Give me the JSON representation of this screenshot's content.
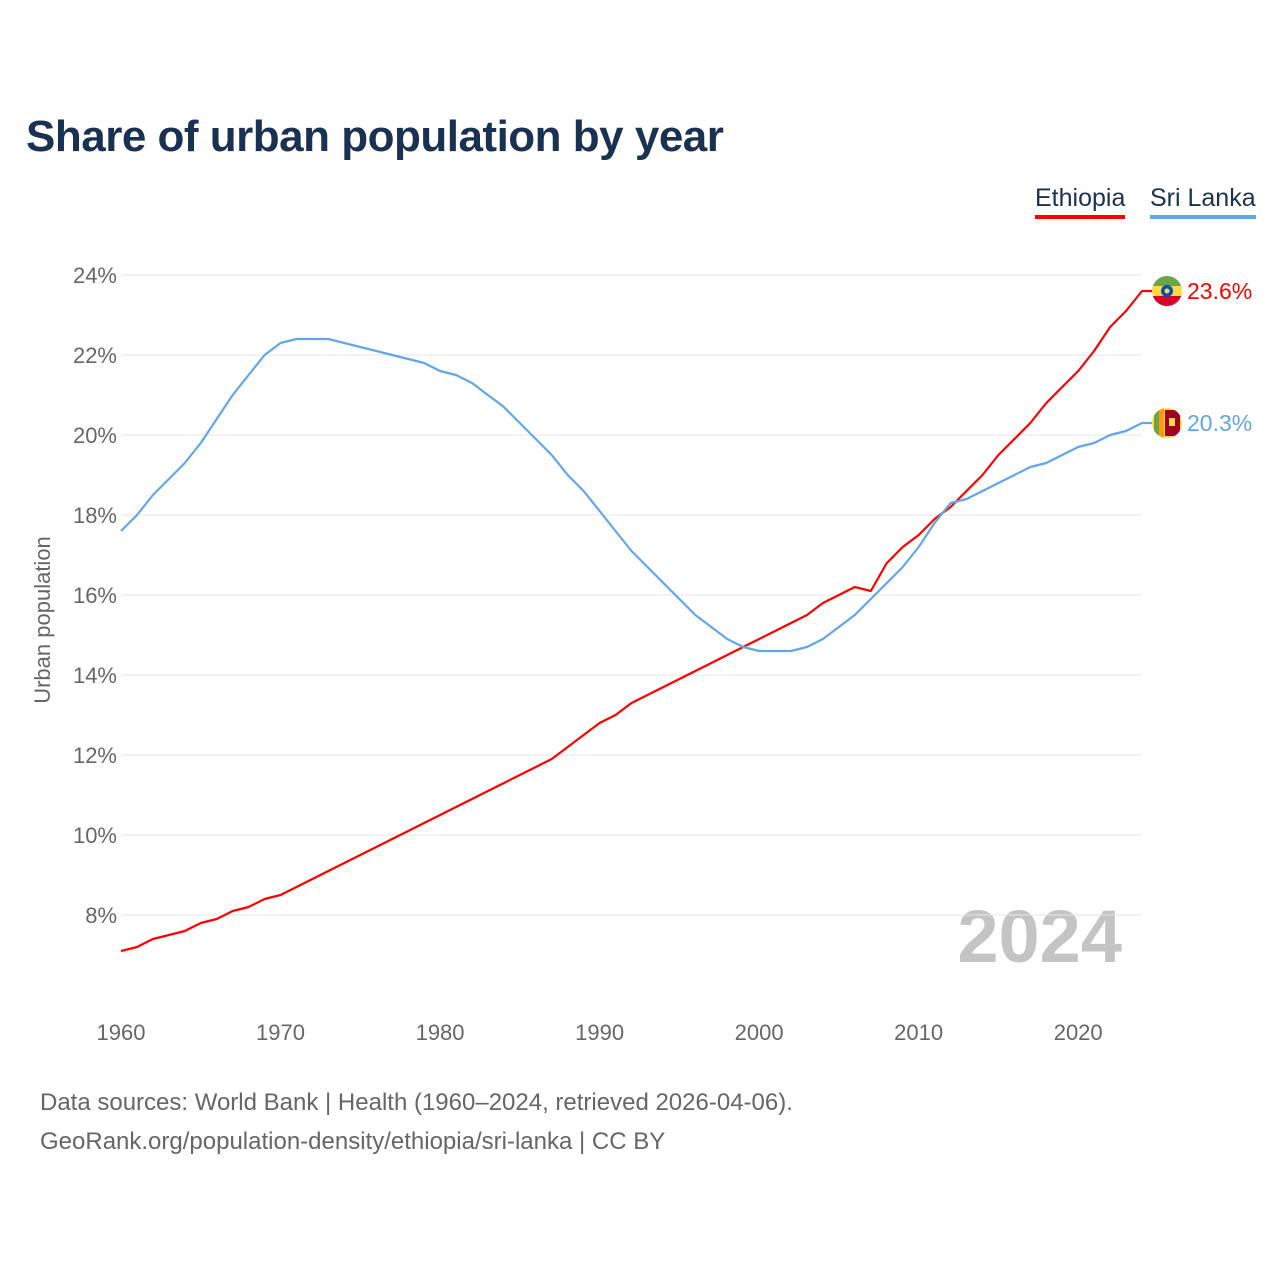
{
  "chart_data": {
    "type": "line",
    "title": "Share of urban population by year",
    "ylabel": "Urban population",
    "xlabel": "",
    "xlim": [
      1960,
      2024
    ],
    "ylim": [
      6,
      24
    ],
    "y_ticks": [
      8,
      10,
      12,
      14,
      16,
      18,
      20,
      22,
      24
    ],
    "y_tick_labels": [
      "8%",
      "10%",
      "12%",
      "14%",
      "16%",
      "18%",
      "20%",
      "22%",
      "24%"
    ],
    "x_ticks": [
      1960,
      1970,
      1980,
      1990,
      2000,
      2010,
      2020
    ],
    "x_tick_labels": [
      "1960",
      "1970",
      "1980",
      "1990",
      "2000",
      "2010",
      "2020"
    ],
    "grid": true,
    "legend_position": "top-right",
    "year_watermark": "2024",
    "x": [
      1960,
      1961,
      1962,
      1963,
      1964,
      1965,
      1966,
      1967,
      1968,
      1969,
      1970,
      1971,
      1972,
      1973,
      1974,
      1975,
      1976,
      1977,
      1978,
      1979,
      1980,
      1981,
      1982,
      1983,
      1984,
      1985,
      1986,
      1987,
      1988,
      1989,
      1990,
      1991,
      1992,
      1993,
      1994,
      1995,
      1996,
      1997,
      1998,
      1999,
      2000,
      2001,
      2002,
      2003,
      2004,
      2005,
      2006,
      2007,
      2008,
      2009,
      2010,
      2011,
      2012,
      2013,
      2014,
      2015,
      2016,
      2017,
      2018,
      2019,
      2020,
      2021,
      2022,
      2023,
      2024
    ],
    "series": [
      {
        "name": "Ethiopia",
        "color": "#ff0000",
        "end_label": "23.6%",
        "values": [
          7.1,
          7.2,
          7.4,
          7.5,
          7.6,
          7.8,
          7.9,
          8.1,
          8.2,
          8.4,
          8.5,
          8.7,
          8.9,
          9.1,
          9.3,
          9.5,
          9.7,
          9.9,
          10.1,
          10.3,
          10.5,
          10.7,
          10.9,
          11.1,
          11.3,
          11.5,
          11.7,
          11.9,
          12.2,
          12.5,
          12.8,
          13.0,
          13.3,
          13.5,
          13.7,
          13.9,
          14.1,
          14.3,
          14.5,
          14.7,
          14.9,
          15.1,
          15.3,
          15.5,
          15.8,
          16.0,
          16.2,
          16.1,
          16.8,
          17.2,
          17.5,
          17.9,
          18.2,
          18.6,
          19.0,
          19.5,
          19.9,
          20.3,
          20.8,
          21.2,
          21.6,
          22.1,
          22.7,
          23.1,
          23.6
        ]
      },
      {
        "name": "Sri Lanka",
        "color": "#62a6ea",
        "end_label": "20.3%",
        "values": [
          17.6,
          18.0,
          18.5,
          18.9,
          19.3,
          19.8,
          20.4,
          21.0,
          21.5,
          22.0,
          22.3,
          22.4,
          22.4,
          22.4,
          22.3,
          22.2,
          22.1,
          22.0,
          21.9,
          21.8,
          21.6,
          21.5,
          21.3,
          21.0,
          20.7,
          20.3,
          19.9,
          19.5,
          19.0,
          18.6,
          18.1,
          17.6,
          17.1,
          16.7,
          16.3,
          15.9,
          15.5,
          15.2,
          14.9,
          14.7,
          14.6,
          14.6,
          14.6,
          14.7,
          14.9,
          15.2,
          15.5,
          15.9,
          16.3,
          16.7,
          17.2,
          17.8,
          18.3,
          18.4,
          18.6,
          18.8,
          19.0,
          19.2,
          19.3,
          19.5,
          19.7,
          19.8,
          20.0,
          20.1,
          20.3
        ]
      }
    ]
  },
  "footer": {
    "line1": "Data sources: World Bank | Health (1960–2024, retrieved 2026-04-06).",
    "line2": "GeoRank.org/population-density/ethiopia/sri-lanka | CC BY"
  }
}
